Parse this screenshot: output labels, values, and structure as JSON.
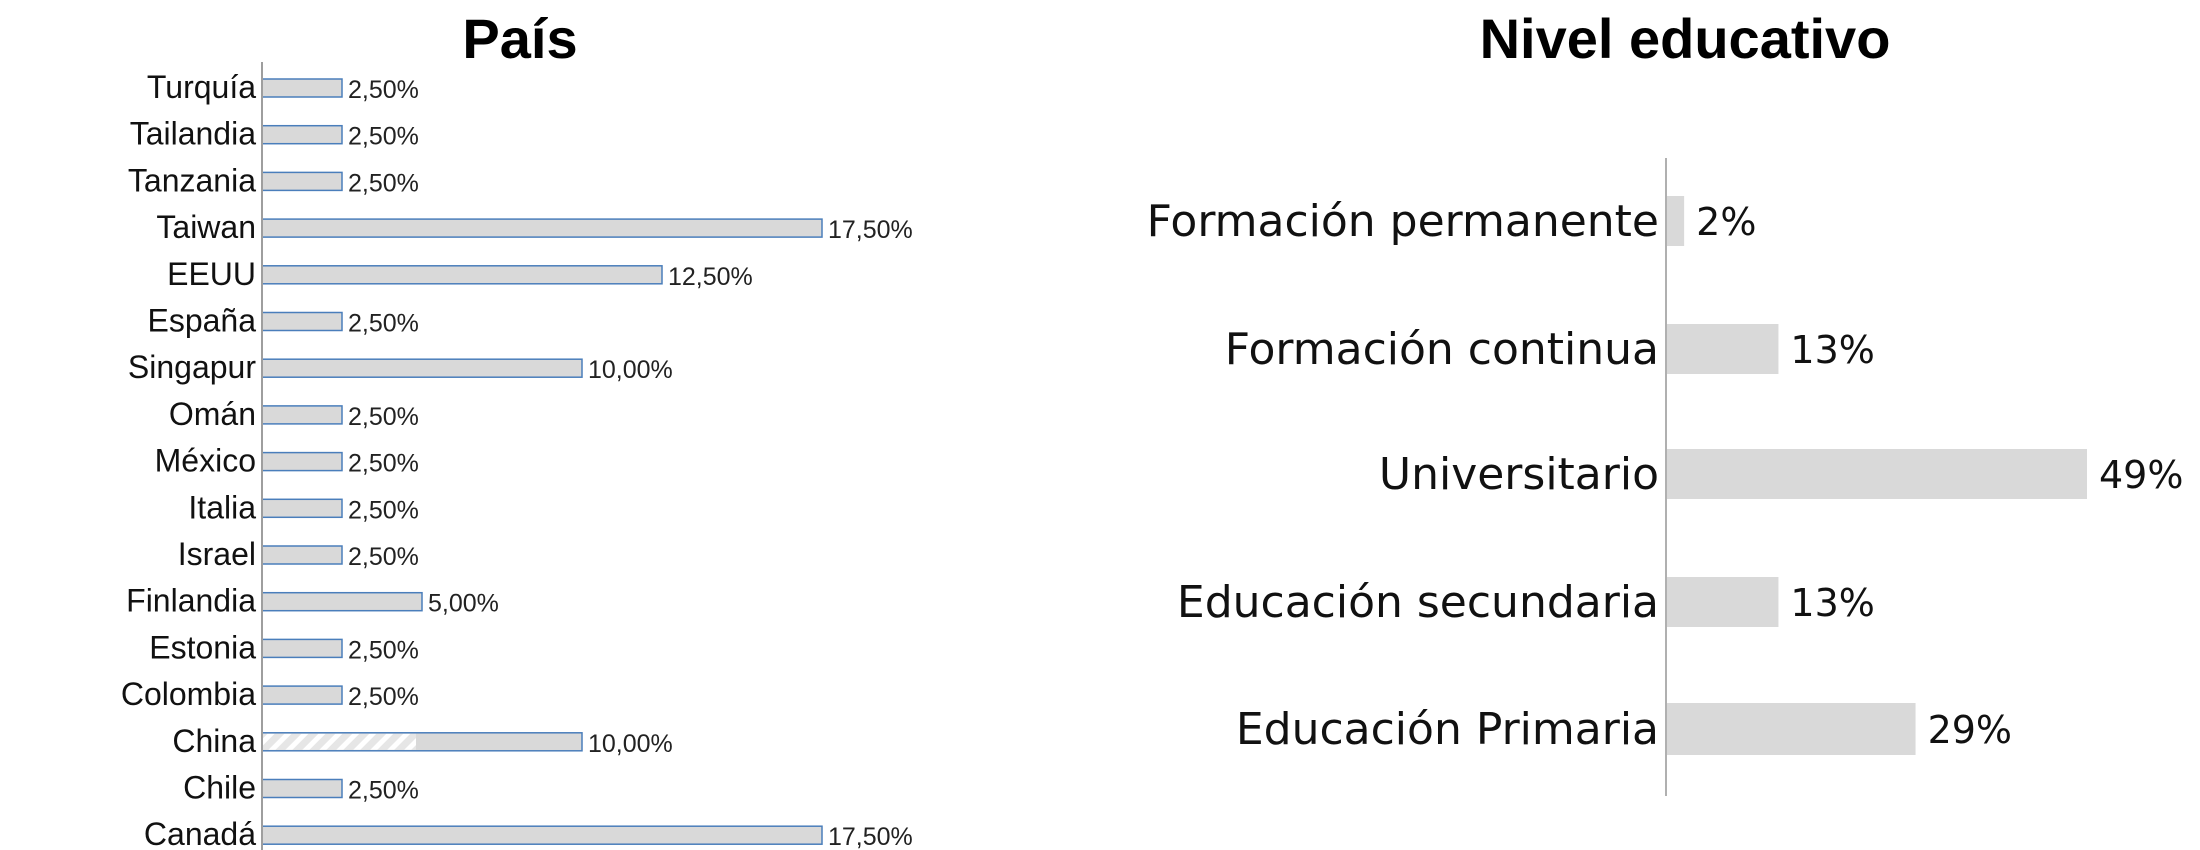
{
  "chart_data": [
    {
      "type": "bar",
      "orientation": "horizontal",
      "title": "País",
      "xlabel": "",
      "ylabel": "",
      "xlim": [
        0,
        17.5
      ],
      "categories": [
        "Turquía",
        "Tailandia",
        "Tanzania",
        "Taiwan",
        "EEUU",
        "España",
        "Singapur",
        "Omán",
        "México",
        "Italia",
        "Israel",
        "Finlandia",
        "Estonia",
        "Colombia",
        "China",
        "Chile",
        "Canadá"
      ],
      "values": [
        2.5,
        2.5,
        2.5,
        17.5,
        12.5,
        2.5,
        10.0,
        2.5,
        2.5,
        2.5,
        2.5,
        5.0,
        2.5,
        2.5,
        10.0,
        2.5,
        17.5
      ],
      "value_labels": [
        "2,50%",
        "2,50%",
        "2,50%",
        "17,50%",
        "12,50%",
        "2,50%",
        "10,00%",
        "2,50%",
        "2,50%",
        "2,50%",
        "2,50%",
        "5,00%",
        "2,50%",
        "2,50%",
        "10,00%",
        "2,50%",
        "17,50%"
      ],
      "hatched_category": "China",
      "grid": false,
      "legend": "none",
      "bar_color": "#d9d9d9",
      "bar_outline_color": "#4a7ebb",
      "axis_color": "#9e9e9e"
    },
    {
      "type": "bar",
      "orientation": "horizontal",
      "title": "Nivel educativo",
      "xlabel": "",
      "ylabel": "",
      "xlim": [
        0,
        49
      ],
      "categories": [
        "Formación permanente",
        "Formación continua",
        "Universitario",
        "Educación secundaria",
        "Educación Primaria"
      ],
      "values": [
        2,
        13,
        49,
        13,
        29
      ],
      "value_labels": [
        "2%",
        "13%",
        "49%",
        "13%",
        "29%"
      ],
      "grid": false,
      "legend": "none",
      "bar_color": "#d9d9d9",
      "axis_color": "#b0b0b0"
    }
  ]
}
